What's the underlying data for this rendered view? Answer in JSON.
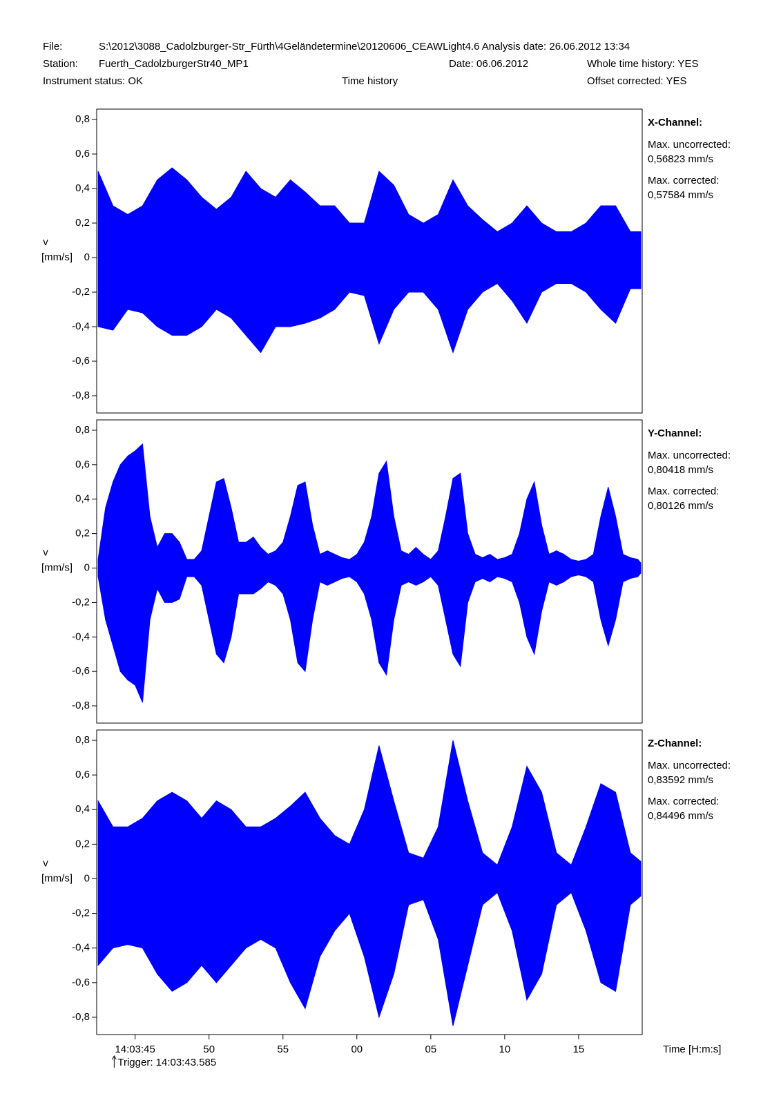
{
  "header": {
    "file_label": "File:",
    "file": "S:\\2012\\3088_Cadolzburger-Str_Fürth\\4Geländetermine\\20120606_CEAWLight4.6 Analysis date: 26.06.2012 13:34",
    "station_label": "Station:",
    "station": "Fuerth_CadolzburgerStr40_MP1",
    "date": "Date:  06.06.2012",
    "whole_history": "Whole time history: YES",
    "instrument_status": "Instrument status:  OK",
    "mode": "Time history",
    "offset": "Offset corrected: YES"
  },
  "chart_data": [
    {
      "type": "envelope",
      "color": "#0000ff",
      "channel": "X-Channel:",
      "annotations": [
        "Max. uncorrected:",
        "0,56823 mm/s",
        "Max. corrected:",
        "0,57584 mm/s"
      ],
      "y_label": [
        "v",
        "[mm/s]"
      ],
      "xlim": [
        42.4,
        79.3
      ],
      "ylim": [
        -0.9,
        0.86
      ],
      "yticks": [
        {
          "value": 0.8,
          "label": "0,8"
        },
        {
          "value": 0.6,
          "label": "0,6"
        },
        {
          "value": 0.4,
          "label": "0,4"
        },
        {
          "value": 0.2,
          "label": "0,2"
        },
        0,
        {
          "value": -0.2,
          "label": "-0,2"
        },
        {
          "value": -0.4,
          "label": "-0,4"
        },
        {
          "value": -0.6,
          "label": "-0,6"
        },
        {
          "value": -0.8,
          "label": "-0,8"
        }
      ],
      "x": [
        42.5,
        43.5,
        44.5,
        45.5,
        46.5,
        47.5,
        48.5,
        49.5,
        50.5,
        51.5,
        52.5,
        53.5,
        54.5,
        55.5,
        56.5,
        57.5,
        58.5,
        59.5,
        60.5,
        61.5,
        62.5,
        63.5,
        64.5,
        65.5,
        66.5,
        67.5,
        68.5,
        69.5,
        70.5,
        71.5,
        72.5,
        73.5,
        74.5,
        75.5,
        76.5,
        77.5,
        78.5,
        79.2
      ],
      "high": [
        0.5,
        0.3,
        0.25,
        0.3,
        0.45,
        0.52,
        0.45,
        0.35,
        0.28,
        0.35,
        0.5,
        0.4,
        0.35,
        0.45,
        0.38,
        0.3,
        0.3,
        0.2,
        0.2,
        0.5,
        0.42,
        0.25,
        0.2,
        0.25,
        0.45,
        0.3,
        0.22,
        0.15,
        0.2,
        0.3,
        0.2,
        0.15,
        0.15,
        0.2,
        0.3,
        0.3,
        0.15,
        0.15
      ],
      "low": [
        -0.4,
        -0.42,
        -0.3,
        -0.32,
        -0.4,
        -0.45,
        -0.45,
        -0.4,
        -0.3,
        -0.35,
        -0.45,
        -0.55,
        -0.4,
        -0.4,
        -0.38,
        -0.35,
        -0.3,
        -0.2,
        -0.22,
        -0.5,
        -0.3,
        -0.2,
        -0.2,
        -0.3,
        -0.55,
        -0.3,
        -0.2,
        -0.15,
        -0.25,
        -0.38,
        -0.2,
        -0.15,
        -0.15,
        -0.2,
        -0.3,
        -0.38,
        -0.18,
        -0.18
      ]
    },
    {
      "type": "envelope",
      "color": "#0000ff",
      "channel": "Y-Channel:",
      "annotations": [
        "Max. uncorrected:",
        "0,80418 mm/s",
        "Max. corrected:",
        "0,80126 mm/s"
      ],
      "y_label": [
        "v",
        "[mm/s]"
      ],
      "xlim": [
        42.4,
        79.3
      ],
      "ylim": [
        -0.9,
        0.86
      ],
      "yticks": [
        {
          "value": 0.8,
          "label": "0,8"
        },
        {
          "value": 0.6,
          "label": "0,6"
        },
        {
          "value": 0.4,
          "label": "0,4"
        },
        {
          "value": 0.2,
          "label": "0,2"
        },
        0,
        {
          "value": -0.2,
          "label": "-0,2"
        },
        {
          "value": -0.4,
          "label": "-0,4"
        },
        {
          "value": -0.6,
          "label": "-0,6"
        },
        {
          "value": -0.8,
          "label": "-0,8"
        }
      ],
      "x": [
        42.5,
        43.0,
        43.5,
        44.0,
        44.5,
        45.0,
        45.5,
        46.0,
        46.5,
        47.0,
        47.5,
        48.0,
        48.5,
        49.0,
        49.5,
        50.0,
        50.5,
        51.0,
        51.5,
        52.0,
        52.5,
        53.0,
        53.5,
        54.0,
        54.5,
        55.0,
        55.5,
        56.0,
        56.5,
        57.0,
        57.5,
        58.0,
        58.5,
        59.0,
        59.5,
        60.0,
        60.5,
        61.0,
        61.5,
        62.0,
        62.5,
        63.0,
        63.5,
        64.0,
        64.5,
        65.0,
        65.5,
        66.0,
        66.5,
        67.0,
        67.5,
        68.0,
        68.5,
        69.0,
        69.5,
        70.0,
        70.5,
        71.0,
        71.5,
        72.0,
        72.5,
        73.0,
        73.5,
        74.0,
        74.5,
        75.0,
        75.5,
        76.0,
        76.5,
        77.0,
        77.5,
        78.0,
        78.5,
        79.0,
        79.2
      ],
      "high": [
        0.05,
        0.35,
        0.5,
        0.6,
        0.65,
        0.68,
        0.72,
        0.3,
        0.12,
        0.2,
        0.2,
        0.15,
        0.05,
        0.05,
        0.1,
        0.3,
        0.5,
        0.52,
        0.35,
        0.15,
        0.15,
        0.18,
        0.12,
        0.08,
        0.1,
        0.15,
        0.3,
        0.48,
        0.5,
        0.25,
        0.08,
        0.1,
        0.08,
        0.06,
        0.05,
        0.08,
        0.15,
        0.3,
        0.55,
        0.62,
        0.3,
        0.1,
        0.08,
        0.12,
        0.08,
        0.05,
        0.1,
        0.3,
        0.52,
        0.55,
        0.2,
        0.08,
        0.06,
        0.08,
        0.05,
        0.06,
        0.08,
        0.2,
        0.4,
        0.5,
        0.25,
        0.08,
        0.1,
        0.08,
        0.05,
        0.04,
        0.05,
        0.08,
        0.3,
        0.47,
        0.3,
        0.08,
        0.06,
        0.05,
        0.03
      ],
      "low": [
        -0.05,
        -0.3,
        -0.45,
        -0.6,
        -0.65,
        -0.68,
        -0.78,
        -0.3,
        -0.12,
        -0.2,
        -0.2,
        -0.18,
        -0.05,
        -0.05,
        -0.1,
        -0.3,
        -0.5,
        -0.55,
        -0.4,
        -0.15,
        -0.15,
        -0.15,
        -0.12,
        -0.08,
        -0.1,
        -0.15,
        -0.3,
        -0.55,
        -0.6,
        -0.3,
        -0.08,
        -0.1,
        -0.08,
        -0.06,
        -0.05,
        -0.08,
        -0.15,
        -0.3,
        -0.55,
        -0.62,
        -0.3,
        -0.1,
        -0.08,
        -0.1,
        -0.08,
        -0.05,
        -0.1,
        -0.3,
        -0.5,
        -0.57,
        -0.2,
        -0.08,
        -0.06,
        -0.08,
        -0.05,
        -0.06,
        -0.08,
        -0.2,
        -0.4,
        -0.5,
        -0.25,
        -0.08,
        -0.1,
        -0.08,
        -0.05,
        -0.04,
        -0.05,
        -0.08,
        -0.3,
        -0.45,
        -0.3,
        -0.08,
        -0.06,
        -0.05,
        -0.03
      ]
    },
    {
      "type": "envelope",
      "color": "#0000ff",
      "channel": "Z-Channel:",
      "annotations": [
        "Max. uncorrected:",
        "0,83592 mm/s",
        "Max. corrected:",
        "0,84496 mm/s"
      ],
      "y_label": [
        "v",
        "[mm/s]"
      ],
      "xlim": [
        42.4,
        79.3
      ],
      "ylim": [
        -0.9,
        0.86
      ],
      "yticks": [
        {
          "value": 0.8,
          "label": "0,8"
        },
        {
          "value": 0.6,
          "label": "0,6"
        },
        {
          "value": 0.4,
          "label": "0,4"
        },
        {
          "value": 0.2,
          "label": "0,2"
        },
        0,
        {
          "value": -0.2,
          "label": "-0,2"
        },
        {
          "value": -0.4,
          "label": "-0,4"
        },
        {
          "value": -0.6,
          "label": "-0,6"
        },
        {
          "value": -0.8,
          "label": "-0,8"
        }
      ],
      "xticks": [
        {
          "value": 45,
          "label": "14:03:45"
        },
        50,
        55,
        {
          "value": 60,
          "label": "00"
        },
        {
          "value": 65,
          "label": "05"
        },
        {
          "value": 70,
          "label": "10"
        },
        {
          "value": 75,
          "label": "15"
        }
      ],
      "x_label": "Time [H:m:s]",
      "trigger": {
        "value": 43.585,
        "label": "Trigger:  14:03:43.585"
      },
      "x": [
        42.5,
        43.5,
        44.5,
        45.5,
        46.5,
        47.5,
        48.5,
        49.5,
        50.5,
        51.5,
        52.5,
        53.5,
        54.5,
        55.5,
        56.5,
        57.5,
        58.5,
        59.5,
        60.5,
        61.5,
        62.5,
        63.5,
        64.5,
        65.5,
        66.5,
        67.5,
        68.5,
        69.5,
        70.5,
        71.5,
        72.5,
        73.5,
        74.5,
        75.5,
        76.5,
        77.5,
        78.5,
        79.2
      ],
      "high": [
        0.45,
        0.3,
        0.3,
        0.35,
        0.45,
        0.5,
        0.45,
        0.35,
        0.45,
        0.4,
        0.3,
        0.3,
        0.35,
        0.42,
        0.5,
        0.35,
        0.25,
        0.2,
        0.4,
        0.77,
        0.45,
        0.15,
        0.12,
        0.3,
        0.8,
        0.45,
        0.15,
        0.08,
        0.3,
        0.65,
        0.5,
        0.15,
        0.08,
        0.3,
        0.55,
        0.5,
        0.15,
        0.1
      ],
      "low": [
        -0.5,
        -0.4,
        -0.38,
        -0.4,
        -0.55,
        -0.65,
        -0.6,
        -0.5,
        -0.6,
        -0.5,
        -0.4,
        -0.35,
        -0.4,
        -0.6,
        -0.75,
        -0.45,
        -0.3,
        -0.2,
        -0.45,
        -0.8,
        -0.55,
        -0.15,
        -0.12,
        -0.35,
        -0.85,
        -0.5,
        -0.15,
        -0.08,
        -0.3,
        -0.7,
        -0.55,
        -0.15,
        -0.08,
        -0.3,
        -0.6,
        -0.65,
        -0.15,
        -0.1
      ]
    }
  ]
}
